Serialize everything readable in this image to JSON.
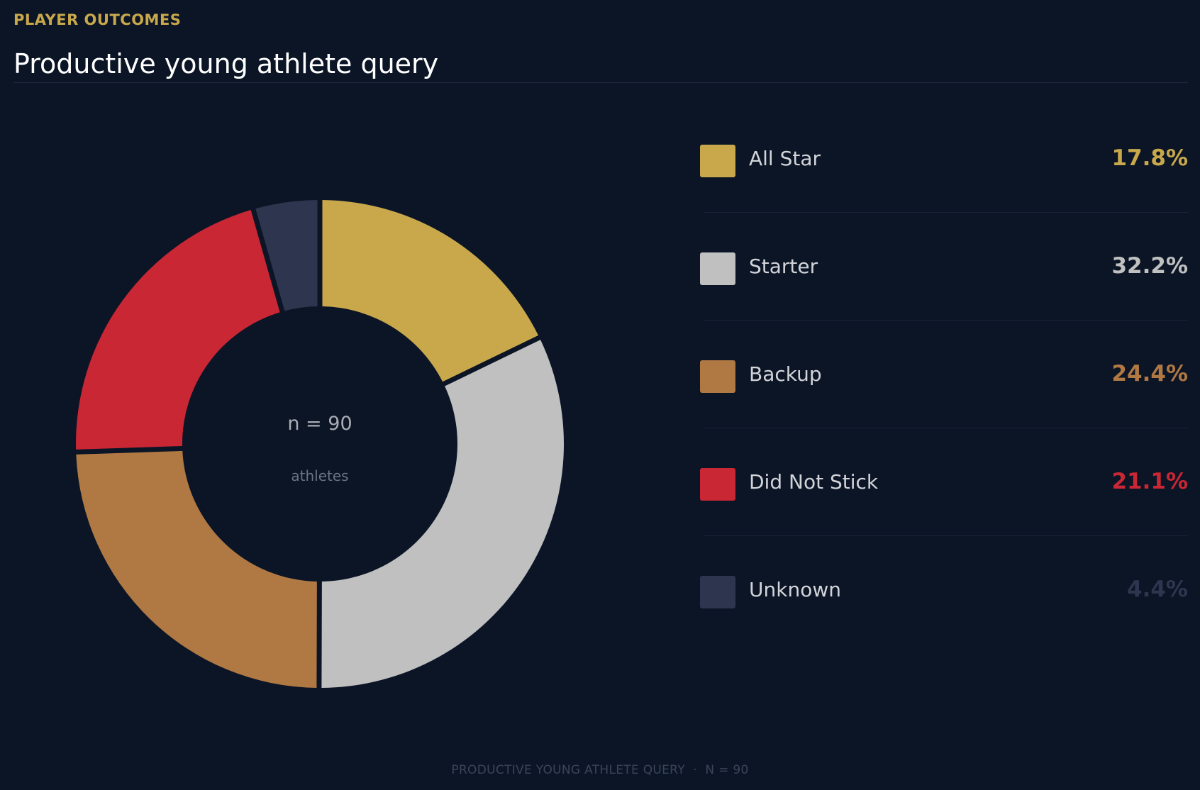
{
  "header": {
    "eyebrow": "PLAYER OUTCOMES",
    "title": "Productive young athlete query"
  },
  "center": {
    "count_label": "n = 90",
    "unit_label": "athletes"
  },
  "footer": {
    "text": "PRODUCTIVE YOUNG ATHLETE QUERY  ·  N = 90"
  },
  "colors": {
    "background": "#0b1526",
    "accent": "#c8a84b"
  },
  "chart_data": {
    "type": "pie",
    "variant": "donut",
    "categories": [
      "All Star",
      "Starter",
      "Backup",
      "Did Not Stick",
      "Unknown"
    ],
    "values": [
      17.8,
      32.2,
      24.4,
      21.1,
      4.4
    ],
    "value_labels": [
      "17.8%",
      "32.2%",
      "24.4%",
      "21.1%",
      "4.4%"
    ],
    "colors": [
      "#c8a84b",
      "#c0c0c0",
      "#b07842",
      "#c92734",
      "#2e364f"
    ],
    "value_text_colors": [
      "#c8a84b",
      "#c0c0c0",
      "#b07842",
      "#c92734",
      "#2e364f"
    ],
    "total": 90,
    "legend_position": "right"
  }
}
